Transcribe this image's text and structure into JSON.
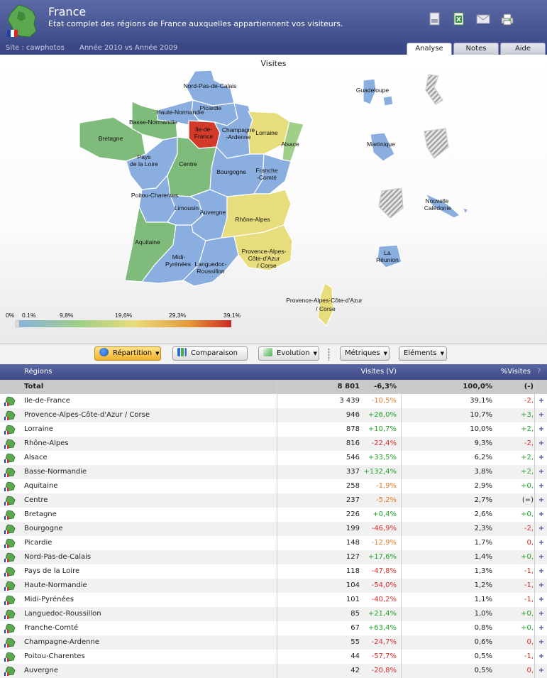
{
  "header": {
    "title": "France",
    "subtitle": "Etat complet des régions de France auxquelles appartiennent vos visiteurs.",
    "site": "Site : cawphotos",
    "period": "Année 2010 vs Année 2009",
    "tools": [
      "pdf-export-icon",
      "excel-export-icon",
      "email-icon",
      "print-icon"
    ]
  },
  "tabs": [
    {
      "label": "Analyse",
      "active": true
    },
    {
      "label": "Notes",
      "active": false
    },
    {
      "label": "Aide",
      "active": false
    }
  ],
  "map": {
    "title": "Visites",
    "regions": {
      "npc": "Nord-Pas-de-Calais",
      "picardie": "Picardie",
      "hnormandie": "Haute-Normandie",
      "bnormandie": "Basse-Normandie",
      "bretagne": "Bretagne",
      "idf1": "Ile-de-",
      "idf2": "France",
      "champagne1": "Champagne",
      "champagne2": "-Ardenne",
      "lorraine": "Lorraine",
      "alsace": "Alsace",
      "pdl1": "Pays",
      "pdl2": "de la Loire",
      "centre": "Centre",
      "bourgogne": "Bourgogne",
      "fc1": "Franche",
      "fc2": "-Comté",
      "poitou": "Poitou-Charentes",
      "limousin": "Limousin",
      "auvergne": "Auvergne",
      "rhone": "Rhône-Alpes",
      "aquitaine": "Aquitaine",
      "midi1": "Midi-",
      "midi2": "Pyrénées",
      "lang1": "Languedoc-",
      "lang2": "Roussillon",
      "paca1": "Provence-Alpes-",
      "paca2": "Côte-d'Azur",
      "paca3": "/ Corse",
      "corse1": "Provence-Alpes-Côte-d'Azur",
      "corse2": "/ Corse",
      "guadeloupe": "Guadeloupe",
      "martinique": "Martinique",
      "nc1": "Nouvelle",
      "nc2": "Calédonie",
      "reunion1": "La",
      "reunion2": "Réunion"
    },
    "legend": [
      "0%",
      "0.1%",
      "9,8%",
      "19,6%",
      "29,3%",
      "39,1%"
    ]
  },
  "toolbar": {
    "repartition": "Répartition",
    "comparaison": "Comparaison",
    "evolution": "Evolution",
    "metriques": "Métriques",
    "elements": "Eléments"
  },
  "table": {
    "headers": {
      "regions": "Régions",
      "visites": "Visites (V)",
      "pct": "%Visites",
      "help": "?"
    },
    "total": {
      "label": "Total",
      "visits": "8 801",
      "delta": "-6,3%",
      "pct": "100,0%",
      "pdelta": "(-)"
    },
    "rows": [
      {
        "name": "Ile-de-France",
        "visits": "3 439",
        "delta": "-10,5%",
        "pct": "39,1%",
        "pdelta": "-2,",
        "trend": "neg2",
        "ptrend": "neg"
      },
      {
        "name": "Provence-Alpes-Côte-d'Azur / Corse",
        "visits": "946",
        "delta": "+26,0%",
        "pct": "10,7%",
        "pdelta": "+3,",
        "trend": "pos",
        "ptrend": "pos"
      },
      {
        "name": "Lorraine",
        "visits": "878",
        "delta": "+10,7%",
        "pct": "10,0%",
        "pdelta": "+2,",
        "trend": "pos",
        "ptrend": "pos"
      },
      {
        "name": "Rhône-Alpes",
        "visits": "816",
        "delta": "-22,4%",
        "pct": "9,3%",
        "pdelta": "-2,",
        "trend": "neg",
        "ptrend": "neg"
      },
      {
        "name": "Alsace",
        "visits": "546",
        "delta": "+33,5%",
        "pct": "6,2%",
        "pdelta": "+2,",
        "trend": "pos",
        "ptrend": "pos"
      },
      {
        "name": "Basse-Normandie",
        "visits": "337",
        "delta": "+132,4%",
        "pct": "3,8%",
        "pdelta": "+2,",
        "trend": "pos",
        "ptrend": "pos"
      },
      {
        "name": "Aquitaine",
        "visits": "258",
        "delta": "-1,9%",
        "pct": "2,9%",
        "pdelta": "+0,",
        "trend": "neg2",
        "ptrend": "pos"
      },
      {
        "name": "Centre",
        "visits": "237",
        "delta": "-5,2%",
        "pct": "2,7%",
        "pdelta": "(=)",
        "trend": "neg2",
        "ptrend": "eq"
      },
      {
        "name": "Bretagne",
        "visits": "226",
        "delta": "+0,4%",
        "pct": "2,6%",
        "pdelta": "+0,",
        "trend": "pos",
        "ptrend": "pos"
      },
      {
        "name": "Bourgogne",
        "visits": "199",
        "delta": "-46,9%",
        "pct": "2,3%",
        "pdelta": "-2,",
        "trend": "neg",
        "ptrend": "neg"
      },
      {
        "name": "Picardie",
        "visits": "148",
        "delta": "-12,9%",
        "pct": "1,7%",
        "pdelta": "0,",
        "trend": "neg2",
        "ptrend": "neg"
      },
      {
        "name": "Nord-Pas-de-Calais",
        "visits": "127",
        "delta": "+17,6%",
        "pct": "1,4%",
        "pdelta": "+0,",
        "trend": "pos",
        "ptrend": "pos"
      },
      {
        "name": "Pays de la Loire",
        "visits": "118",
        "delta": "-47,8%",
        "pct": "1,3%",
        "pdelta": "-1,",
        "trend": "neg",
        "ptrend": "neg"
      },
      {
        "name": "Haute-Normandie",
        "visits": "104",
        "delta": "-54,0%",
        "pct": "1,2%",
        "pdelta": "-1,",
        "trend": "neg",
        "ptrend": "neg"
      },
      {
        "name": "Midi-Pyrénées",
        "visits": "101",
        "delta": "-40,2%",
        "pct": "1,1%",
        "pdelta": "-1,",
        "trend": "neg",
        "ptrend": "neg"
      },
      {
        "name": "Languedoc-Roussillon",
        "visits": "85",
        "delta": "+21,4%",
        "pct": "1,0%",
        "pdelta": "+0,",
        "trend": "pos",
        "ptrend": "pos"
      },
      {
        "name": "Franche-Comté",
        "visits": "67",
        "delta": "+63,4%",
        "pct": "0,8%",
        "pdelta": "+0,",
        "trend": "pos",
        "ptrend": "pos"
      },
      {
        "name": "Champagne-Ardenne",
        "visits": "55",
        "delta": "-24,7%",
        "pct": "0,6%",
        "pdelta": "0,",
        "trend": "neg",
        "ptrend": "neg"
      },
      {
        "name": "Poitou-Charentes",
        "visits": "44",
        "delta": "-57,7%",
        "pct": "0,5%",
        "pdelta": "-1,",
        "trend": "neg",
        "ptrend": "neg"
      },
      {
        "name": "Auvergne",
        "visits": "42",
        "delta": "-20,8%",
        "pct": "0,5%",
        "pdelta": "0,",
        "trend": "neg",
        "ptrend": "neg"
      }
    ],
    "plus": "+"
  },
  "colors": {
    "header": "#4b5995",
    "active_button": "#f2b12c",
    "positive": "#22a22a",
    "negative": "#dd2a2a",
    "mild_negative": "#e47c2a"
  }
}
